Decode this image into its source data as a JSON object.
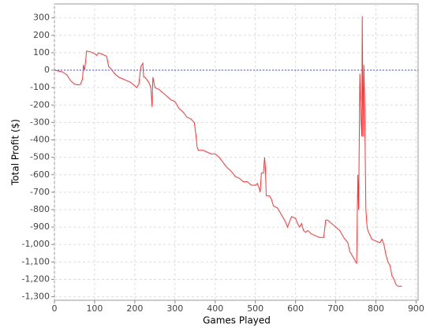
{
  "chart_data": {
    "type": "line",
    "x_label": "Games Played",
    "y_label": "Total Profit ($)",
    "x": [
      0,
      10,
      20,
      30,
      35,
      40,
      50,
      60,
      65,
      70,
      72,
      75,
      78,
      80,
      90,
      100,
      105,
      110,
      120,
      130,
      135,
      140,
      150,
      160,
      170,
      180,
      190,
      200,
      205,
      210,
      215,
      220,
      222,
      225,
      235,
      240,
      243,
      245,
      250,
      260,
      270,
      280,
      290,
      300,
      305,
      310,
      320,
      330,
      340,
      348,
      352,
      355,
      358,
      370,
      380,
      390,
      400,
      410,
      420,
      430,
      440,
      450,
      460,
      470,
      480,
      490,
      500,
      505,
      510,
      512,
      515,
      520,
      523,
      525,
      527,
      535,
      540,
      545,
      555,
      565,
      575,
      580,
      590,
      600,
      605,
      610,
      615,
      620,
      625,
      630,
      640,
      650,
      660,
      670,
      675,
      680,
      690,
      700,
      710,
      720,
      730,
      735,
      740,
      745,
      750,
      752,
      755,
      757,
      760,
      763,
      765,
      766,
      768,
      770,
      772,
      775,
      778,
      780,
      790,
      800,
      810,
      815,
      820,
      825,
      830,
      835,
      840,
      845,
      850,
      855,
      865
    ],
    "series": [
      {
        "color": "#ff3333",
        "values": [
          0,
          -5,
          -10,
          -25,
          -40,
          -60,
          -80,
          -85,
          -80,
          -50,
          30,
          0,
          60,
          110,
          105,
          95,
          85,
          100,
          90,
          80,
          20,
          10,
          -20,
          -40,
          -50,
          -60,
          -70,
          -90,
          -100,
          -80,
          20,
          40,
          -40,
          -40,
          -70,
          -100,
          -210,
          -40,
          -100,
          -110,
          -130,
          -150,
          -170,
          -180,
          -200,
          -220,
          -240,
          -270,
          -280,
          -300,
          -370,
          -440,
          -460,
          -460,
          -470,
          -480,
          -480,
          -500,
          -530,
          -560,
          -580,
          -610,
          -620,
          -640,
          -640,
          -660,
          -660,
          -650,
          -680,
          -700,
          -590,
          -590,
          -500,
          -560,
          -720,
          -720,
          -740,
          -780,
          -790,
          -830,
          -870,
          -900,
          -840,
          -850,
          -880,
          -900,
          -880,
          -920,
          -930,
          -920,
          -940,
          -950,
          -960,
          -960,
          -860,
          -860,
          -880,
          -900,
          -920,
          -960,
          -990,
          -1040,
          -1060,
          -1080,
          -1100,
          -1110,
          -600,
          -800,
          -20,
          -300,
          -380,
          310,
          -380,
          30,
          -200,
          -800,
          -900,
          -920,
          -970,
          -980,
          -990,
          -970,
          -1000,
          -1060,
          -1100,
          -1120,
          -1180,
          -1200,
          -1230,
          -1240,
          -1240
        ]
      }
    ],
    "xlim": [
      0,
      905
    ],
    "ylim": [
      -1320,
      380
    ],
    "xticks": [
      0,
      100,
      200,
      300,
      400,
      500,
      600,
      700,
      800,
      900
    ],
    "yticks": [
      300,
      200,
      100,
      0,
      -100,
      -200,
      -300,
      -400,
      -500,
      -600,
      -700,
      -800,
      -900,
      {
        "value": -1000,
        "label": "-1,000"
      },
      {
        "value": -1100,
        "label": "-1,100"
      },
      {
        "value": -1200,
        "label": "-1,200"
      },
      {
        "value": -1300,
        "label": "-1,300"
      }
    ],
    "grid": true,
    "zero_line_color": "#4444ff"
  }
}
